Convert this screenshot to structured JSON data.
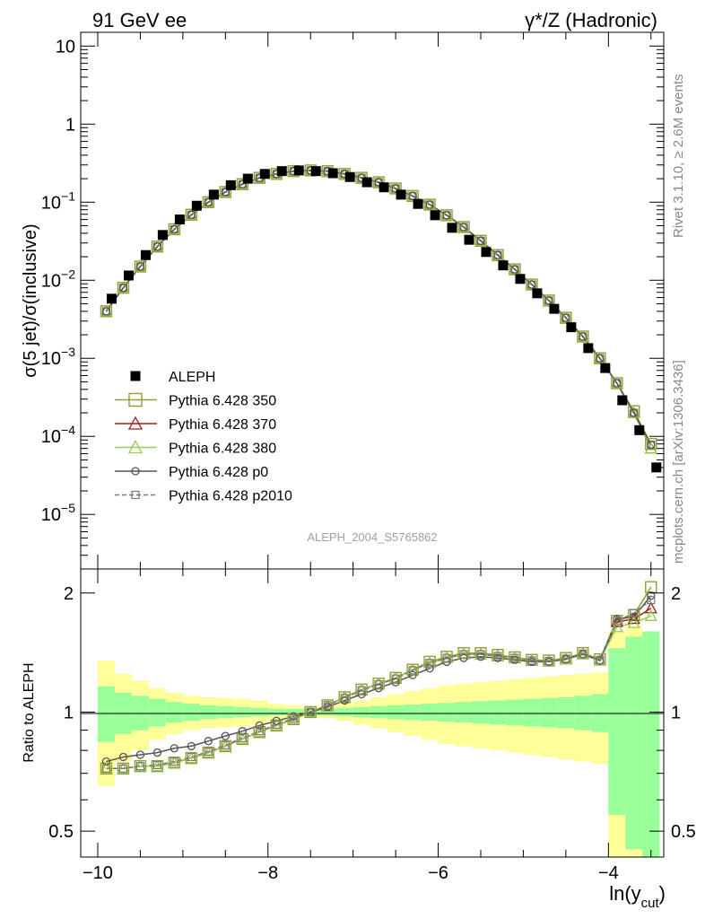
{
  "header": {
    "left": "91 GeV ee",
    "right": "γ*/Z (Hadronic)"
  },
  "side_labels": {
    "rivet": "Rivet 3.1.10, ≥ 2.6M events",
    "mcplots": "mcplots.cern.ch [arXiv:1306.3436]"
  },
  "watermark": "ALEPH_2004_S5765862",
  "chart_data": [
    {
      "type": "scatter",
      "panel": "main",
      "ylabel": "σ(5 jet)/σ(inclusive)",
      "yscale": "log",
      "xlim": [
        -10.2,
        -3.35
      ],
      "ylim": [
        2e-06,
        15
      ],
      "y_ticks": [
        "10^-5",
        "10^-4",
        "10^-3",
        "10^-2",
        "10^-1",
        "1",
        "10"
      ],
      "x": [
        -9.9,
        -9.7,
        -9.5,
        -9.3,
        -9.1,
        -8.9,
        -8.7,
        -8.5,
        -8.3,
        -8.1,
        -7.9,
        -7.7,
        -7.5,
        -7.3,
        -7.1,
        -6.9,
        -6.7,
        -6.5,
        -6.3,
        -6.1,
        -5.9,
        -5.7,
        -5.5,
        -5.3,
        -5.1,
        -4.9,
        -4.7,
        -4.5,
        -4.3,
        -4.1,
        -3.9,
        -3.7,
        -3.5
      ],
      "series": [
        {
          "name": "ALEPH",
          "marker": "filled-square",
          "color": "#000000",
          "values": [
            0.0058,
            0.0115,
            0.021,
            0.038,
            0.06,
            0.09,
            0.125,
            0.165,
            0.2,
            0.23,
            0.25,
            0.255,
            0.25,
            0.235,
            0.21,
            0.18,
            0.155,
            0.125,
            0.095,
            0.068,
            0.047,
            0.033,
            0.023,
            0.0155,
            0.0104,
            0.0068,
            0.0043,
            0.0025,
            0.00135,
            0.00075,
            0.00029,
            0.00012,
            4e-05
          ]
        },
        {
          "name": "Pythia 6.428 350",
          "marker": "open-square",
          "color": "#9a9a30",
          "values": [
            0.004,
            0.008,
            0.015,
            0.027,
            0.045,
            0.069,
            0.1,
            0.135,
            0.17,
            0.205,
            0.23,
            0.25,
            0.255,
            0.25,
            0.23,
            0.205,
            0.18,
            0.15,
            0.12,
            0.093,
            0.068,
            0.048,
            0.032,
            0.021,
            0.0138,
            0.0088,
            0.0055,
            0.0033,
            0.0019,
            0.001,
            0.00048,
            0.00021,
            8e-05
          ]
        },
        {
          "name": "Pythia 6.428 370",
          "marker": "open-triangle",
          "color": "#a01e1e",
          "values": [
            0.004,
            0.008,
            0.015,
            0.027,
            0.045,
            0.069,
            0.1,
            0.135,
            0.17,
            0.205,
            0.23,
            0.25,
            0.255,
            0.25,
            0.23,
            0.205,
            0.18,
            0.15,
            0.12,
            0.093,
            0.068,
            0.048,
            0.032,
            0.021,
            0.0138,
            0.0088,
            0.0055,
            0.0033,
            0.0019,
            0.001,
            0.00048,
            0.0002,
            7e-05
          ]
        },
        {
          "name": "Pythia 6.428 380",
          "marker": "open-triangle",
          "color": "#8fd14f",
          "values": [
            0.004,
            0.008,
            0.015,
            0.027,
            0.045,
            0.069,
            0.1,
            0.135,
            0.17,
            0.205,
            0.23,
            0.25,
            0.255,
            0.25,
            0.23,
            0.205,
            0.18,
            0.15,
            0.12,
            0.093,
            0.068,
            0.048,
            0.032,
            0.021,
            0.0138,
            0.0088,
            0.0055,
            0.0033,
            0.0019,
            0.001,
            0.00048,
            0.0002,
            7e-05
          ]
        },
        {
          "name": "Pythia 6.428 p0",
          "marker": "open-circle",
          "color": "#555555",
          "values": [
            0.004,
            0.008,
            0.015,
            0.027,
            0.045,
            0.069,
            0.1,
            0.135,
            0.17,
            0.205,
            0.23,
            0.25,
            0.255,
            0.25,
            0.23,
            0.205,
            0.18,
            0.15,
            0.12,
            0.093,
            0.068,
            0.048,
            0.032,
            0.021,
            0.0138,
            0.0088,
            0.0055,
            0.0033,
            0.0019,
            0.001,
            0.00048,
            0.0002,
            7.8e-05
          ]
        },
        {
          "name": "Pythia 6.428 p2010",
          "marker": "open-square-small",
          "color": "#777777",
          "dashed": true,
          "values": [
            0.004,
            0.008,
            0.015,
            0.027,
            0.045,
            0.069,
            0.1,
            0.135,
            0.17,
            0.205,
            0.23,
            0.25,
            0.255,
            0.25,
            0.23,
            0.205,
            0.18,
            0.15,
            0.12,
            0.093,
            0.068,
            0.048,
            0.032,
            0.021,
            0.0138,
            0.0088,
            0.0055,
            0.0033,
            0.0019,
            0.001,
            0.00048,
            0.0002,
            7.8e-05
          ]
        }
      ],
      "legend_position": "lower-left"
    },
    {
      "type": "line",
      "panel": "ratio",
      "ylabel": "Ratio to ALEPH",
      "xlabel": "ln(y_cut)",
      "xlabel_main": "ln(y",
      "xlabel_sub": "cut",
      "xlabel_close": ")",
      "xlim": [
        -10.2,
        -3.35
      ],
      "ylim": [
        0.43,
        2.3
      ],
      "x_ticks": [
        -10,
        -8,
        -6,
        -4
      ],
      "x_tick_labels": [
        "−10",
        "−8",
        "−6",
        "−4"
      ],
      "y_ticks": [
        0.5,
        1,
        2
      ],
      "y_tick_labels": [
        "0.5",
        "1",
        "2"
      ],
      "band_edges": [
        -10,
        -9.8,
        -9.6,
        -9.4,
        -9.2,
        -9.0,
        -8.8,
        -8.6,
        -8.4,
        -8.2,
        -8.0,
        -7.8,
        -7.6,
        -7.4,
        -7.2,
        -7.0,
        -6.8,
        -6.6,
        -6.4,
        -6.2,
        -6.0,
        -5.8,
        -5.6,
        -5.4,
        -5.2,
        -5.0,
        -4.8,
        -4.6,
        -4.4,
        -4.2,
        -4.0,
        -3.8,
        -3.6,
        -3.4
      ],
      "band_green": [
        0.16,
        0.12,
        0.1,
        0.08,
        0.06,
        0.05,
        0.04,
        0.035,
        0.03,
        0.025,
        0.02,
        0.018,
        0.018,
        0.02,
        0.025,
        0.03,
        0.035,
        0.04,
        0.045,
        0.05,
        0.055,
        0.06,
        0.065,
        0.07,
        0.075,
        0.08,
        0.085,
        0.09,
        0.1,
        0.11,
        0.45,
        0.55,
        0.6
      ],
      "band_yellow": [
        0.35,
        0.25,
        0.2,
        0.15,
        0.12,
        0.1,
        0.09,
        0.085,
        0.08,
        0.07,
        0.05,
        0.04,
        0.03,
        0.035,
        0.05,
        0.07,
        0.09,
        0.11,
        0.13,
        0.15,
        0.17,
        0.18,
        0.19,
        0.2,
        0.21,
        0.22,
        0.23,
        0.24,
        0.25,
        0.26,
        0.6,
        0.65,
        0.6
      ],
      "x": [
        -9.9,
        -9.7,
        -9.5,
        -9.3,
        -9.1,
        -8.9,
        -8.7,
        -8.5,
        -8.3,
        -8.1,
        -7.9,
        -7.7,
        -7.5,
        -7.3,
        -7.1,
        -6.9,
        -6.7,
        -6.5,
        -6.3,
        -6.1,
        -5.9,
        -5.7,
        -5.5,
        -5.3,
        -5.1,
        -4.9,
        -4.7,
        -4.5,
        -4.3,
        -4.1,
        -3.9,
        -3.7,
        -3.5
      ],
      "series": [
        {
          "name": "Pythia 6.428 350",
          "color": "#9a9a30",
          "marker": "open-square",
          "values": [
            0.72,
            0.72,
            0.73,
            0.73,
            0.745,
            0.765,
            0.79,
            0.82,
            0.855,
            0.89,
            0.925,
            0.96,
            1.0,
            1.04,
            1.09,
            1.14,
            1.18,
            1.22,
            1.28,
            1.34,
            1.38,
            1.41,
            1.41,
            1.395,
            1.375,
            1.355,
            1.35,
            1.37,
            1.41,
            1.36,
            1.7,
            1.76,
            2.07
          ]
        },
        {
          "name": "Pythia 6.428 370",
          "color": "#a01e1e",
          "marker": "open-triangle",
          "values": [
            0.72,
            0.72,
            0.73,
            0.73,
            0.745,
            0.765,
            0.79,
            0.82,
            0.855,
            0.89,
            0.925,
            0.96,
            1.0,
            1.04,
            1.09,
            1.14,
            1.18,
            1.22,
            1.28,
            1.33,
            1.37,
            1.4,
            1.4,
            1.385,
            1.37,
            1.35,
            1.345,
            1.36,
            1.4,
            1.35,
            1.69,
            1.72,
            1.83
          ]
        },
        {
          "name": "Pythia 6.428 380",
          "color": "#8fd14f",
          "marker": "open-triangle",
          "values": [
            0.72,
            0.72,
            0.73,
            0.73,
            0.745,
            0.765,
            0.79,
            0.82,
            0.855,
            0.89,
            0.925,
            0.96,
            1.0,
            1.04,
            1.09,
            1.14,
            1.18,
            1.22,
            1.28,
            1.33,
            1.37,
            1.4,
            1.4,
            1.385,
            1.37,
            1.35,
            1.345,
            1.36,
            1.4,
            1.35,
            1.64,
            1.68,
            1.75
          ]
        },
        {
          "name": "Pythia 6.428 p0",
          "color": "#555555",
          "marker": "open-circle",
          "values": [
            0.75,
            0.77,
            0.78,
            0.79,
            0.81,
            0.82,
            0.845,
            0.87,
            0.895,
            0.925,
            0.95,
            0.975,
            1.0,
            1.03,
            1.07,
            1.11,
            1.15,
            1.19,
            1.24,
            1.29,
            1.34,
            1.37,
            1.38,
            1.37,
            1.355,
            1.34,
            1.34,
            1.36,
            1.4,
            1.35,
            1.72,
            1.74,
            1.97
          ]
        },
        {
          "name": "Pythia 6.428 p2010",
          "color": "#777777",
          "marker": "open-square-small",
          "dashed": true,
          "values": [
            0.72,
            0.72,
            0.73,
            0.735,
            0.75,
            0.77,
            0.795,
            0.825,
            0.86,
            0.895,
            0.93,
            0.965,
            1.0,
            1.04,
            1.085,
            1.135,
            1.175,
            1.215,
            1.275,
            1.33,
            1.37,
            1.4,
            1.4,
            1.385,
            1.37,
            1.35,
            1.345,
            1.365,
            1.405,
            1.355,
            1.7,
            1.78,
            1.92
          ]
        }
      ]
    }
  ]
}
